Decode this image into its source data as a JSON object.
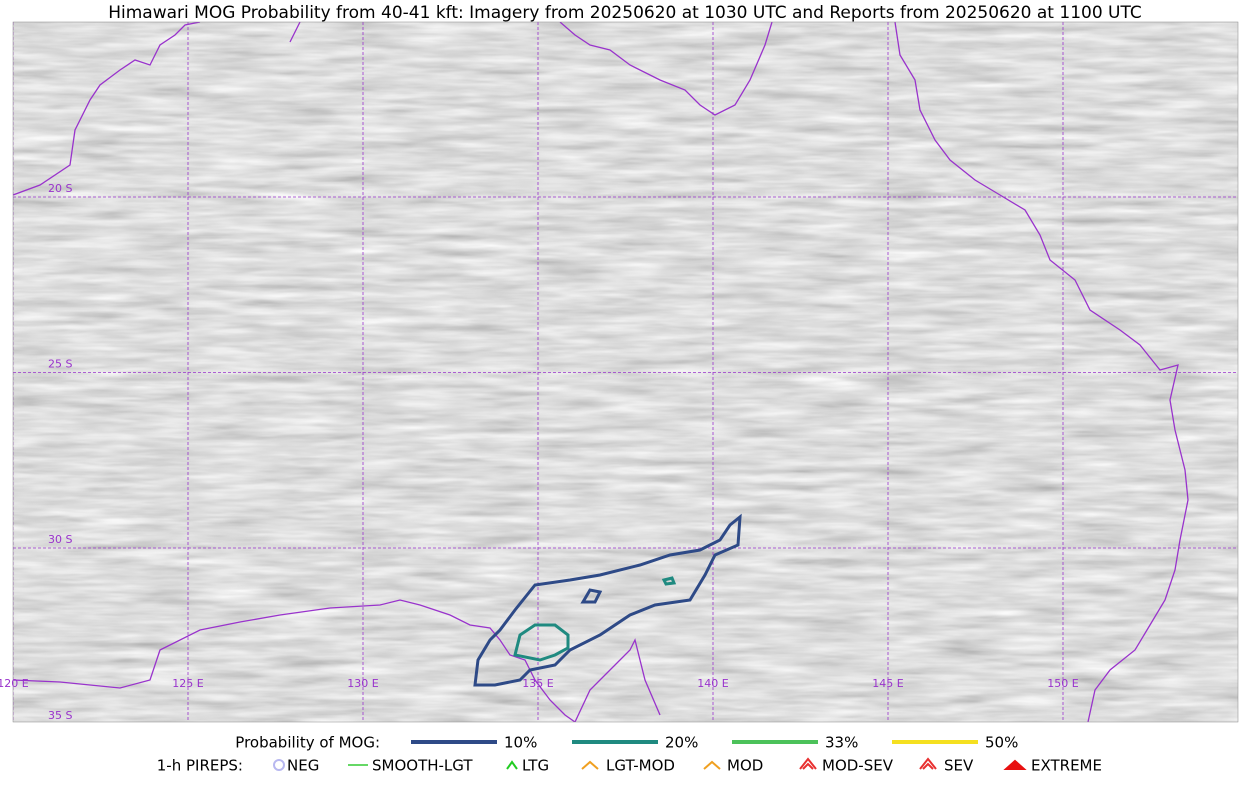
{
  "header": {
    "title": "Himawari MOG Probability from 40-41 kft: Imagery from 20250620 at 1030 UTC and Reports from 20250620 at 1100 UTC"
  },
  "map": {
    "lon_labels": [
      "120 E",
      "125 E",
      "130 E",
      "135 E",
      "140 E",
      "145 E",
      "150 E"
    ],
    "lat_labels": [
      "20 S",
      "25 S",
      "30 S",
      "35 S"
    ]
  },
  "legend": {
    "probability": {
      "label": "Probability of MOG:",
      "items": [
        {
          "label": "10%",
          "color": "#2e4a87"
        },
        {
          "label": "20%",
          "color": "#1f8a80"
        },
        {
          "label": "33%",
          "color": "#4cc25a"
        },
        {
          "label": "50%",
          "color": "#f5e020"
        }
      ]
    },
    "pireps": {
      "label": "1-h PIREPS:",
      "items": [
        {
          "label": "NEG",
          "color": "#b8b8f0"
        },
        {
          "label": "SMOOTH-LGT",
          "color": "#33cc33"
        },
        {
          "label": "LTG",
          "color": "#22cc22"
        },
        {
          "label": "LGT-MOD",
          "color": "#f0a020"
        },
        {
          "label": "MOD",
          "color": "#f0a020"
        },
        {
          "label": "MOD-SEV",
          "color": "#e83030"
        },
        {
          "label": "SEV",
          "color": "#e83030"
        },
        {
          "label": "EXTREME",
          "color": "#e81010"
        }
      ]
    }
  }
}
